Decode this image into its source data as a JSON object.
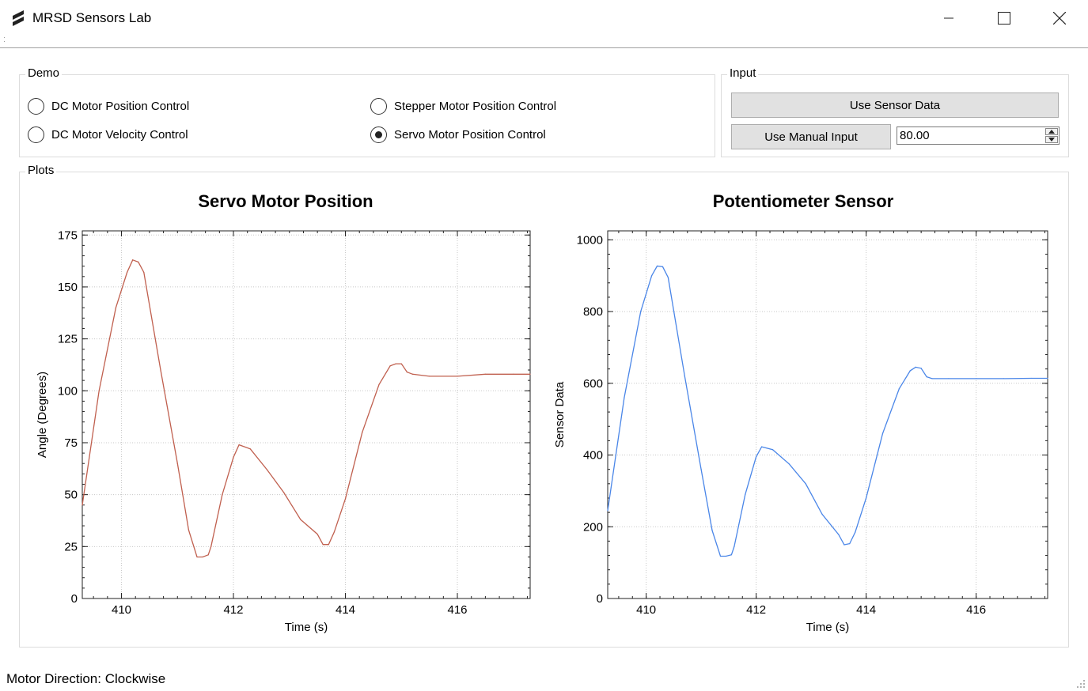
{
  "window": {
    "title": "MRSD Sensors Lab",
    "icons": [
      "app-logo-icon",
      "minimize-icon",
      "maximize-icon",
      "close-icon"
    ]
  },
  "demo": {
    "title": "Demo",
    "options": [
      {
        "label": "DC Motor Position Control",
        "checked": false
      },
      {
        "label": "DC Motor Velocity Control",
        "checked": false
      },
      {
        "label": "Stepper Motor Position Control",
        "checked": false
      },
      {
        "label": "Servo Motor Position Control",
        "checked": true
      }
    ]
  },
  "input": {
    "title": "Input",
    "sensor_button": "Use Sensor Data",
    "manual_button": "Use Manual Input",
    "manual_value": "80.00"
  },
  "plots": {
    "title": "Plots"
  },
  "status": {
    "text": "Motor Direction: Clockwise"
  },
  "colors": {
    "servo_line": "#c0604f",
    "sensor_line": "#4a86e8",
    "grid": "#c8c8c8"
  },
  "chart_data": [
    {
      "type": "line",
      "title": "Servo Motor Position",
      "xlabel": "Time (s)",
      "ylabel": "Angle (Degrees)",
      "xlim": [
        409.3,
        417.3
      ],
      "ylim": [
        0,
        177
      ],
      "xticks": [
        410,
        412,
        414,
        416
      ],
      "yticks": [
        0,
        25,
        50,
        75,
        100,
        125,
        150,
        175
      ],
      "grid": true,
      "series": [
        {
          "color": "#c0604f",
          "x": [
            409.3,
            409.6,
            409.9,
            410.1,
            410.2,
            410.3,
            410.4,
            410.7,
            411.0,
            411.2,
            411.35,
            411.45,
            411.55,
            411.6,
            411.8,
            412.0,
            412.1,
            412.3,
            412.6,
            412.9,
            413.2,
            413.5,
            413.6,
            413.7,
            413.8,
            414.0,
            414.3,
            414.6,
            414.8,
            414.9,
            415.0,
            415.1,
            415.2,
            415.5,
            416.0,
            416.5,
            417.0,
            417.3
          ],
          "y": [
            45,
            100,
            140,
            157,
            163,
            162,
            157,
            110,
            65,
            33,
            20,
            20,
            21,
            25,
            50,
            68,
            74,
            72,
            62,
            51,
            38,
            31,
            26,
            26,
            32,
            48,
            80,
            103,
            112,
            113,
            113,
            109,
            108,
            107,
            107,
            108,
            108,
            108
          ]
        }
      ]
    },
    {
      "type": "line",
      "title": "Potentiometer Sensor",
      "xlabel": "Time (s)",
      "ylabel": "Sensor Data",
      "xlim": [
        409.3,
        417.3
      ],
      "ylim": [
        0,
        1025
      ],
      "xticks": [
        410,
        412,
        414,
        416
      ],
      "yticks": [
        0,
        200,
        400,
        600,
        800,
        1000
      ],
      "grid": true,
      "series": [
        {
          "color": "#4a86e8",
          "x": [
            409.3,
            409.6,
            409.9,
            410.1,
            410.2,
            410.3,
            410.4,
            410.7,
            411.0,
            411.2,
            411.35,
            411.45,
            411.55,
            411.6,
            411.8,
            412.0,
            412.1,
            412.3,
            412.6,
            412.9,
            413.2,
            413.5,
            413.6,
            413.7,
            413.8,
            414.0,
            414.3,
            414.6,
            414.8,
            414.9,
            415.0,
            415.1,
            415.2,
            415.5,
            416.0,
            416.5,
            417.0,
            417.3
          ],
          "y": [
            245,
            560,
            800,
            900,
            927,
            925,
            895,
            620,
            360,
            190,
            118,
            118,
            122,
            145,
            290,
            395,
            423,
            415,
            375,
            320,
            235,
            178,
            150,
            153,
            185,
            280,
            460,
            585,
            635,
            645,
            642,
            618,
            613,
            613,
            613,
            613,
            614,
            614
          ]
        }
      ]
    }
  ]
}
